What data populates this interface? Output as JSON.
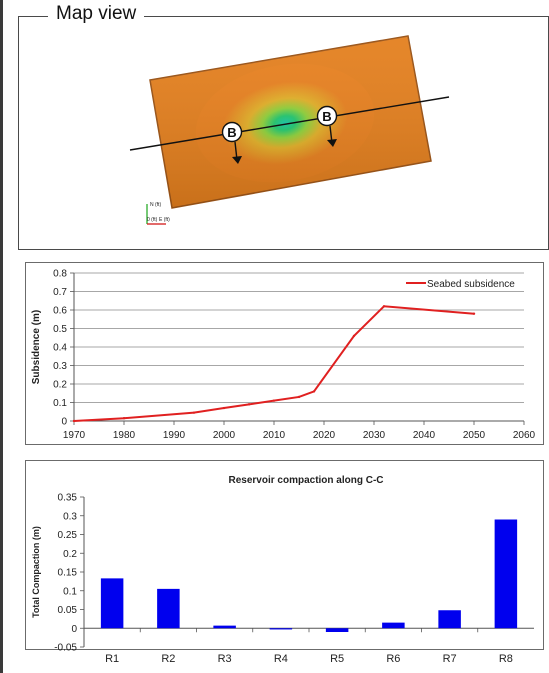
{
  "map_view": {
    "title": "Map view",
    "section_marker": "B",
    "compass": {
      "north": "N (ft)",
      "origin": "0 (ft)",
      "east": "E (ft)"
    },
    "colors": {
      "field": "#e8801e",
      "center": "#22c98a",
      "edge": "#8f4a14",
      "line": "#111111"
    }
  },
  "chart_data": [
    {
      "type": "line",
      "title": "",
      "xlabel": "",
      "ylabel": "Subsidence (m)",
      "xlim": [
        1970,
        2060
      ],
      "ylim": [
        0,
        0.8
      ],
      "xticks": [
        1970,
        1980,
        1990,
        2000,
        2010,
        2020,
        2030,
        2040,
        2050,
        2060
      ],
      "yticks": [
        0,
        0.1,
        0.2,
        0.3,
        0.4,
        0.5,
        0.6,
        0.7,
        0.8
      ],
      "grid": true,
      "legend_position": "top-right",
      "series": [
        {
          "name": "Seabed subsidence",
          "color": "#e02020",
          "x": [
            1970,
            1980,
            1994,
            2000,
            2005,
            2010,
            2015,
            2018,
            2026,
            2032,
            2050
          ],
          "y": [
            0,
            0.015,
            0.045,
            0.07,
            0.09,
            0.11,
            0.13,
            0.16,
            0.46,
            0.62,
            0.58
          ]
        }
      ]
    },
    {
      "type": "bar",
      "title": "Reservoir compaction along C-C",
      "xlabel": "",
      "ylabel": "Total Compaction (m)",
      "ylim": [
        -0.05,
        0.35
      ],
      "yticks": [
        -0.05,
        0,
        0.05,
        0.1,
        0.15,
        0.2,
        0.25,
        0.3,
        0.35
      ],
      "grid": false,
      "bar_color": "#0000ee",
      "categories": [
        "R1",
        "R2",
        "R3",
        "R4",
        "R5",
        "R6",
        "R7",
        "R8"
      ],
      "values": [
        0.133,
        0.105,
        0.007,
        -0.003,
        -0.01,
        0.015,
        0.048,
        0.29
      ]
    }
  ]
}
